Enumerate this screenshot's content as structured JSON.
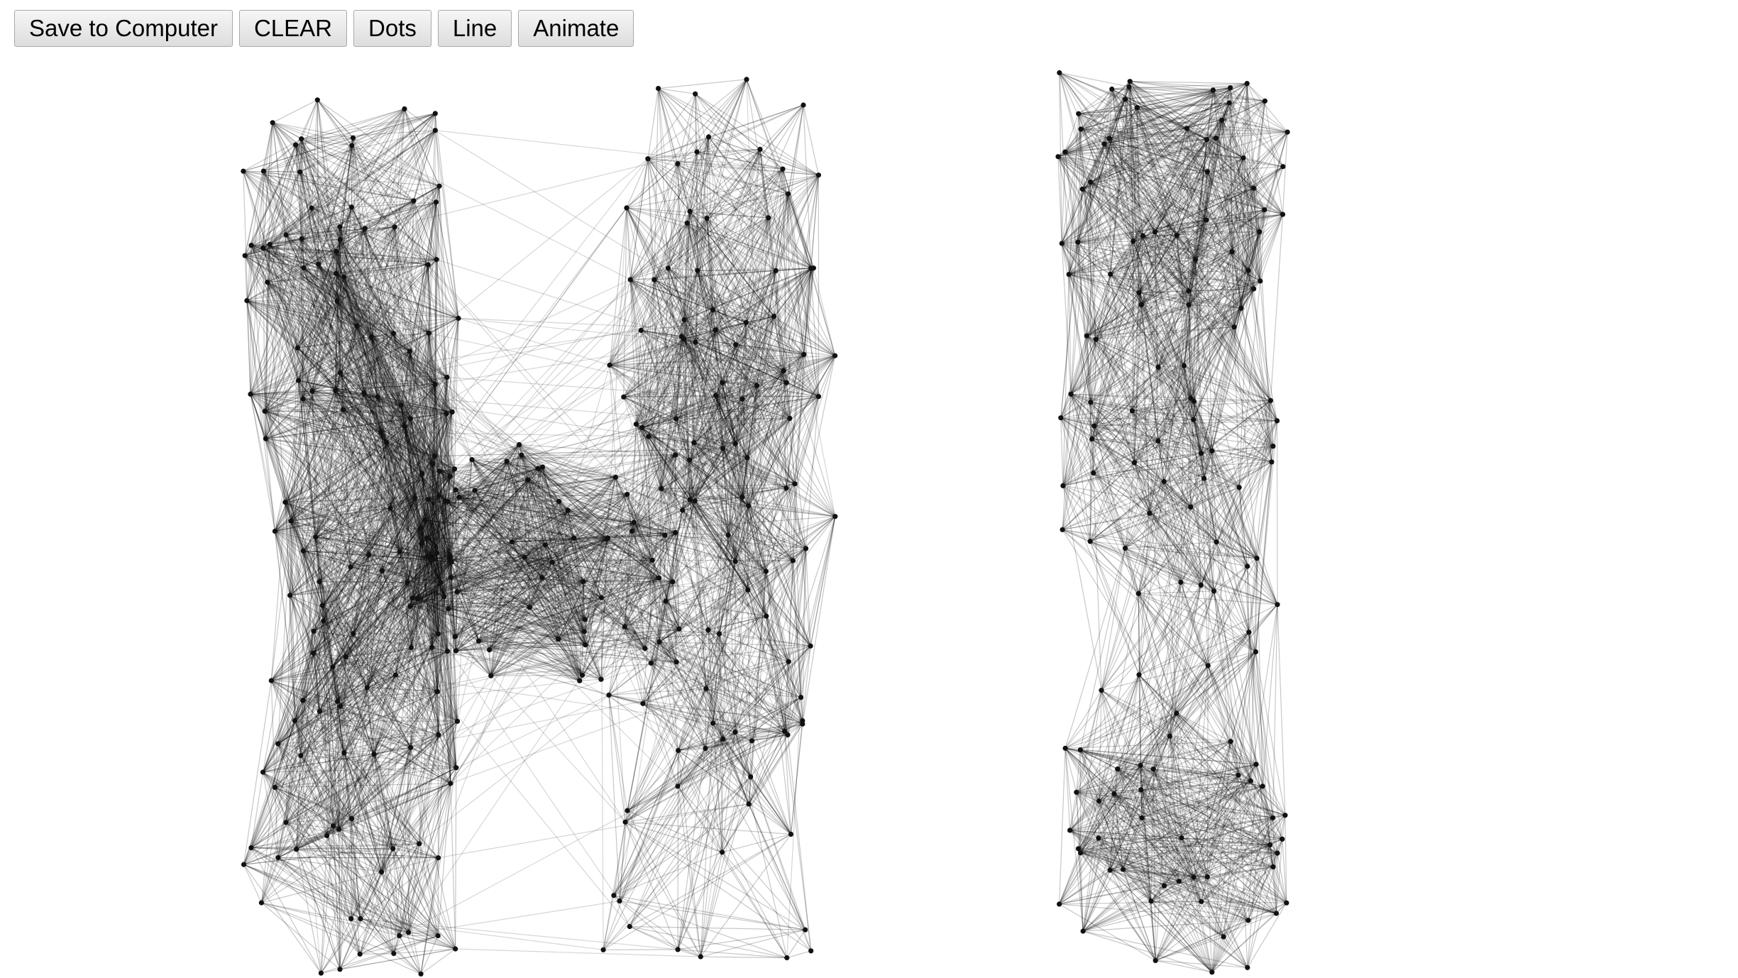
{
  "toolbar": {
    "buttons": [
      {
        "id": "save",
        "label": "Save to Computer"
      },
      {
        "id": "clear",
        "label": "CLEAR"
      },
      {
        "id": "dots",
        "label": "Dots"
      },
      {
        "id": "line",
        "label": "Line"
      },
      {
        "id": "animate",
        "label": "Animate"
      }
    ]
  },
  "canvas": {
    "background": "#ffffff",
    "stroke_color": "#000000",
    "dot_color": "#111111",
    "drawn_text": "HI"
  }
}
